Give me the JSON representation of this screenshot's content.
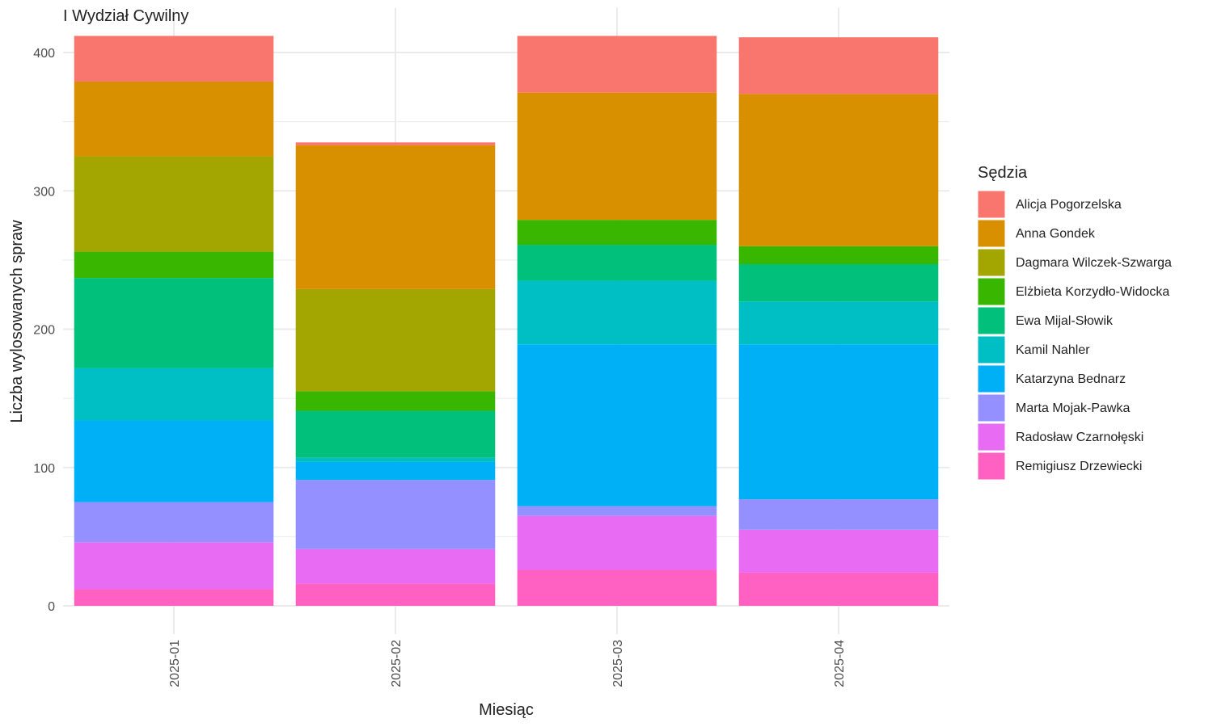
{
  "chart_data": {
    "type": "bar",
    "stacked": true,
    "title": "I Wydział Cywilny",
    "xlabel": "Miesiąc",
    "ylabel": "Liczba wylosowanych spraw",
    "ylim": [
      0,
      420
    ],
    "yticks": [
      0,
      100,
      200,
      300,
      400
    ],
    "grid": true,
    "legend_title": "Sędzia",
    "legend_position": "right",
    "categories": [
      "2025-01",
      "2025-02",
      "2025-03",
      "2025-04"
    ],
    "series": [
      {
        "name": "Remigiusz Drzewiecki",
        "color": "#FF61C3",
        "values": [
          12,
          16,
          26,
          24
        ]
      },
      {
        "name": "Radosław Czarnołęski",
        "color": "#E76BF3",
        "values": [
          34,
          25,
          39,
          31
        ]
      },
      {
        "name": "Marta Mojak-Pawka",
        "color": "#9590FF",
        "values": [
          29,
          50,
          7,
          22
        ]
      },
      {
        "name": "Katarzyna Bednarz",
        "color": "#00B0F6",
        "values": [
          59,
          13,
          117,
          112
        ]
      },
      {
        "name": "Kamil Nahler",
        "color": "#00BFC4",
        "values": [
          38,
          3,
          46,
          31
        ]
      },
      {
        "name": "Ewa Mijal-Słowik",
        "color": "#00C07B",
        "values": [
          65,
          34,
          26,
          27
        ]
      },
      {
        "name": "Elżbieta Korzydło-Widocka",
        "color": "#39B600",
        "values": [
          19,
          14,
          18,
          13
        ]
      },
      {
        "name": "Dagmara Wilczek-Szwarga",
        "color": "#A3A500",
        "values": [
          69,
          74,
          0,
          0
        ]
      },
      {
        "name": "Anna Gondek",
        "color": "#D89000",
        "values": [
          54,
          104,
          92,
          110
        ]
      },
      {
        "name": "Alicja Pogorzelska",
        "color": "#F8766D",
        "values": [
          33,
          2,
          41,
          41
        ]
      }
    ],
    "legend_order": [
      "Alicja Pogorzelska",
      "Anna Gondek",
      "Dagmara Wilczek-Szwarga",
      "Elżbieta Korzydło-Widocka",
      "Ewa Mijal-Słowik",
      "Kamil Nahler",
      "Katarzyna Bednarz",
      "Marta Mojak-Pawka",
      "Radosław Czarnołęski",
      "Remigiusz Drzewiecki"
    ]
  }
}
